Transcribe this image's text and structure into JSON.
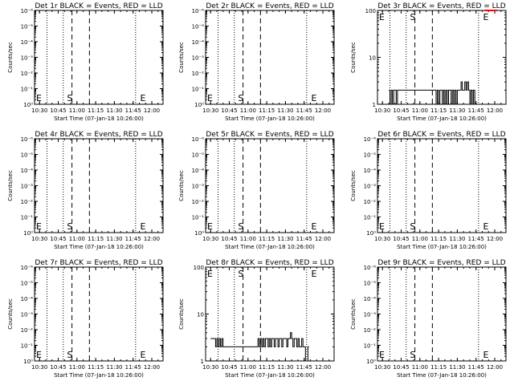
{
  "colors": {
    "events": "#000000",
    "lld": "#ff0000",
    "background": "#ffffff"
  },
  "chart_data": [
    {
      "type": "line",
      "title": "Det 1r BLACK = Events, RED = LLD",
      "xlabel": "Start Time (07-Jan-18 10:26:00)",
      "ylabel": "Counts/sec",
      "yscale": "log",
      "ylim": [
        1,
        1000000
      ],
      "ytick_labels": [
        "10⁰",
        "10⁻¹",
        "10⁻²",
        "10⁻³",
        "10⁻⁴",
        "10⁻⁵",
        "10⁻⁶"
      ],
      "xlim": [
        "10:26",
        "12:09"
      ],
      "xtick_labels": [
        "10:30",
        "10:45",
        "11:00",
        "11:15",
        "11:30",
        "11:45",
        "12:00"
      ],
      "dotted_lines": [
        "10:36",
        "10:49",
        "11:47"
      ],
      "dashed_lines": [
        "10:56",
        "11:10"
      ],
      "markers": {
        "S": "S",
        "E": "E"
      },
      "series": []
    },
    {
      "type": "line",
      "title": "Det 2r BLACK = Events, RED = LLD",
      "xlabel": "Start Time (07-Jan-18 10:26:00)",
      "ylabel": "Counts/sec",
      "yscale": "log",
      "ylim": [
        1,
        1000000
      ],
      "ytick_labels": [
        "10⁰",
        "10⁻¹",
        "10⁻²",
        "10⁻³",
        "10⁻⁴",
        "10⁻⁵",
        "10⁻⁶"
      ],
      "xlim": [
        "10:26",
        "12:09"
      ],
      "xtick_labels": [
        "10:30",
        "10:45",
        "11:00",
        "11:15",
        "11:30",
        "11:45",
        "12:00"
      ],
      "dotted_lines": [
        "10:36",
        "10:49",
        "11:47"
      ],
      "dashed_lines": [
        "10:56",
        "11:10"
      ],
      "markers": {
        "S": "S",
        "E": "E"
      },
      "series": []
    },
    {
      "type": "line",
      "title": "Det 3r BLACK = Events, RED = LLD",
      "xlabel": "Start Time (07-Jan-18 10:26:00)",
      "ylabel": "Counts/sec",
      "yscale": "log",
      "ylim": [
        1,
        100
      ],
      "ytick_labels": [
        "1",
        "10",
        "100"
      ],
      "xlim": [
        "10:26",
        "12:09"
      ],
      "xtick_labels": [
        "10:30",
        "10:45",
        "11:00",
        "11:15",
        "11:30",
        "11:45",
        "12:00"
      ],
      "dotted_lines": [
        "10:36",
        "10:49",
        "11:47"
      ],
      "dashed_lines": [
        "10:56",
        "11:10"
      ],
      "markers": {
        "S": "S",
        "E": "E"
      },
      "series": [
        {
          "color": "#000000",
          "x": [
            "10:35",
            "10:36",
            "10:37",
            "10:38",
            "10:39",
            "10:40",
            "10:41",
            "10:42",
            "11:13",
            "11:14",
            "11:15",
            "11:16",
            "11:17",
            "11:18",
            "11:19",
            "11:20",
            "11:21",
            "11:22",
            "11:23",
            "11:24",
            "11:25",
            "11:26",
            "11:27",
            "11:28",
            "11:29",
            "11:30",
            "11:31",
            "11:32",
            "11:33",
            "11:34",
            "11:35",
            "11:36",
            "11:37",
            "11:38",
            "11:39",
            "11:40",
            "11:41",
            "11:42",
            "11:43",
            "11:44"
          ],
          "y": [
            2,
            1,
            2,
            1,
            2,
            2,
            1,
            2,
            1,
            2,
            1,
            2,
            2,
            1,
            2,
            1,
            2,
            1,
            2,
            2,
            1,
            2,
            1,
            2,
            1,
            2,
            2,
            2,
            3,
            2,
            2,
            3,
            2,
            3,
            2,
            1,
            2,
            1,
            2,
            1
          ]
        },
        {
          "color": "#ff0000",
          "x": [
            "11:52",
            "11:53",
            "11:54",
            "11:55",
            "11:56",
            "11:57",
            "11:58",
            "11:59",
            "12:00",
            "12:01"
          ],
          "y": [
            100,
            100,
            100,
            100,
            100,
            100,
            100,
            100,
            100,
            100
          ]
        }
      ]
    },
    {
      "type": "line",
      "title": "Det 4r BLACK = Events, RED = LLD",
      "xlabel": "Start Time (07-Jan-18 10:26:00)",
      "ylabel": "Counts/sec",
      "yscale": "log",
      "ylim": [
        1,
        1000000
      ],
      "ytick_labels": [
        "10⁰",
        "10⁻¹",
        "10⁻²",
        "10⁻³",
        "10⁻⁴",
        "10⁻⁵",
        "10⁻⁶"
      ],
      "xlim": [
        "10:26",
        "12:09"
      ],
      "xtick_labels": [
        "10:30",
        "10:45",
        "11:00",
        "11:15",
        "11:30",
        "11:45",
        "12:00"
      ],
      "dotted_lines": [
        "10:36",
        "10:49",
        "11:47"
      ],
      "dashed_lines": [
        "10:56",
        "11:10"
      ],
      "markers": {
        "S": "S",
        "E": "E"
      },
      "series": []
    },
    {
      "type": "line",
      "title": "Det 5r BLACK = Events, RED = LLD",
      "xlabel": "Start Time (07-Jan-18 10:26:00)",
      "ylabel": "Counts/sec",
      "yscale": "log",
      "ylim": [
        1,
        1000000
      ],
      "ytick_labels": [
        "10⁰",
        "10⁻¹",
        "10⁻²",
        "10⁻³",
        "10⁻⁴",
        "10⁻⁵",
        "10⁻⁶"
      ],
      "xlim": [
        "10:26",
        "12:09"
      ],
      "xtick_labels": [
        "10:30",
        "10:45",
        "11:00",
        "11:15",
        "11:30",
        "11:45",
        "12:00"
      ],
      "dotted_lines": [
        "10:36",
        "10:49",
        "11:47"
      ],
      "dashed_lines": [
        "10:56",
        "11:10"
      ],
      "markers": {
        "S": "S",
        "E": "E"
      },
      "series": []
    },
    {
      "type": "line",
      "title": "Det 6r BLACK = Events, RED = LLD",
      "xlabel": "Start Time (07-Jan-18 10:26:00)",
      "ylabel": "Counts/sec",
      "yscale": "log",
      "ylim": [
        1,
        1000000
      ],
      "ytick_labels": [
        "10⁰",
        "10⁻¹",
        "10⁻²",
        "10⁻³",
        "10⁻⁴",
        "10⁻⁵",
        "10⁻⁶"
      ],
      "xlim": [
        "10:26",
        "12:09"
      ],
      "xtick_labels": [
        "10:30",
        "10:45",
        "11:00",
        "11:15",
        "11:30",
        "11:45",
        "12:00"
      ],
      "dotted_lines": [
        "10:36",
        "10:49",
        "11:47"
      ],
      "dashed_lines": [
        "10:56",
        "11:10"
      ],
      "markers": {
        "S": "S",
        "E": "E"
      },
      "series": []
    },
    {
      "type": "line",
      "title": "Det 7r BLACK = Events, RED = LLD",
      "xlabel": "Start Time (07-Jan-18 10:26:00)",
      "ylabel": "Counts/sec",
      "yscale": "log",
      "ylim": [
        1,
        1000000
      ],
      "ytick_labels": [
        "10⁰",
        "10⁻¹",
        "10⁻²",
        "10⁻³",
        "10⁻⁴",
        "10⁻⁵",
        "10⁻⁶"
      ],
      "xlim": [
        "10:26",
        "12:09"
      ],
      "xtick_labels": [
        "10:30",
        "10:45",
        "11:00",
        "11:15",
        "11:30",
        "11:45",
        "12:00"
      ],
      "dotted_lines": [
        "10:36",
        "10:49",
        "11:47"
      ],
      "dashed_lines": [
        "10:56",
        "11:10"
      ],
      "markers": {
        "S": "S",
        "E": "E"
      },
      "series": []
    },
    {
      "type": "line",
      "title": "Det 8r BLACK = Events, RED = LLD",
      "xlabel": "Start Time (07-Jan-18 10:26:00)",
      "ylabel": "Counts/sec",
      "yscale": "log",
      "ylim": [
        1,
        100
      ],
      "ytick_labels": [
        "1",
        "10",
        "100"
      ],
      "xlim": [
        "10:26",
        "12:09"
      ],
      "xtick_labels": [
        "10:30",
        "10:45",
        "11:00",
        "11:15",
        "11:30",
        "11:45",
        "12:00"
      ],
      "dotted_lines": [
        "10:36",
        "10:49",
        "11:47"
      ],
      "dashed_lines": [
        "10:56",
        "11:10"
      ],
      "markers": {
        "S": "S",
        "E": "E"
      },
      "series": [
        {
          "color": "#000000",
          "x": [
            "10:30",
            "10:31",
            "10:32",
            "10:33",
            "10:34",
            "10:35",
            "10:36",
            "10:37",
            "10:38",
            "10:39",
            "10:40",
            "11:07",
            "11:08",
            "11:09",
            "11:10",
            "11:11",
            "11:12",
            "11:13",
            "11:14",
            "11:15",
            "11:16",
            "11:17",
            "11:18",
            "11:19",
            "11:20",
            "11:21",
            "11:22",
            "11:23",
            "11:24",
            "11:25",
            "11:26",
            "11:27",
            "11:28",
            "11:29",
            "11:30",
            "11:31",
            "11:32",
            "11:33",
            "11:34",
            "11:35",
            "11:36",
            "11:37",
            "11:38",
            "11:39",
            "11:40",
            "11:41",
            "11:42",
            "11:43",
            "11:44",
            "11:45",
            "11:46",
            "11:47",
            "11:48"
          ],
          "y": [
            3,
            3,
            3,
            3,
            2,
            3,
            2,
            3,
            2,
            3,
            2,
            2,
            3,
            2,
            3,
            2,
            3,
            2,
            3,
            3,
            2,
            3,
            2,
            3,
            3,
            2,
            3,
            3,
            2,
            3,
            3,
            2,
            3,
            3,
            3,
            2,
            3,
            3,
            4,
            3,
            2,
            3,
            3,
            2,
            3,
            2,
            2,
            3,
            2,
            2,
            1,
            1,
            2
          ]
        }
      ]
    },
    {
      "type": "line",
      "title": "Det 9r BLACK = Events, RED = LLD",
      "xlabel": "Start Time (07-Jan-18 10:26:00)",
      "ylabel": "Counts/sec",
      "yscale": "log",
      "ylim": [
        1,
        1000000
      ],
      "ytick_labels": [
        "10⁰",
        "10⁻¹",
        "10⁻²",
        "10⁻³",
        "10⁻⁴",
        "10⁻⁵",
        "10⁻⁶"
      ],
      "xlim": [
        "10:26",
        "12:09"
      ],
      "xtick_labels": [
        "10:30",
        "10:45",
        "11:00",
        "11:15",
        "11:30",
        "11:45",
        "12:00"
      ],
      "dotted_lines": [
        "10:36",
        "10:49",
        "11:47"
      ],
      "dashed_lines": [
        "10:56",
        "11:10"
      ],
      "markers": {
        "S": "S",
        "E": "E"
      },
      "series": []
    }
  ]
}
